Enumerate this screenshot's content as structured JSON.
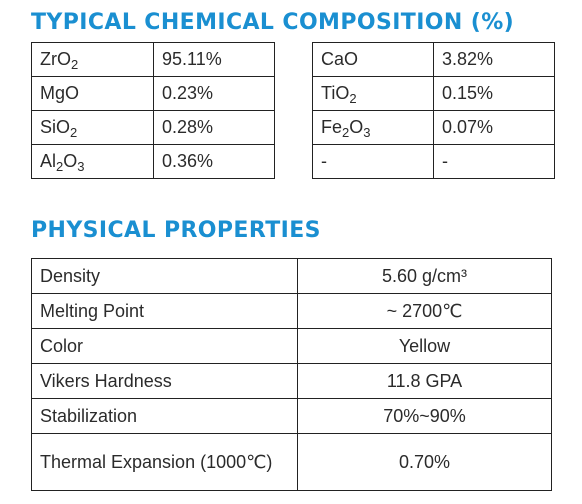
{
  "colors": {
    "heading": "#1a8fd1",
    "border": "#222222",
    "text": "#2b2b2b"
  },
  "chemical": {
    "title": "TYPICAL CHEMICAL COMPOSITION (%)",
    "left": [
      {
        "base": "ZrO",
        "sub": "2",
        "value": "95.11%"
      },
      {
        "base": "MgO",
        "sub": "",
        "value": "0.23%"
      },
      {
        "base": "SiO",
        "sub": "2",
        "value": "0.28%"
      },
      {
        "base": "Al",
        "sub": "2",
        "tail": "O",
        "sub2": "3",
        "value": "0.36%"
      }
    ],
    "right": [
      {
        "base": "CaO",
        "sub": "",
        "value": "3.82%"
      },
      {
        "base": "TiO",
        "sub": "2",
        "value": "0.15%"
      },
      {
        "base": "Fe",
        "sub": "2",
        "tail": "O",
        "sub2": "3",
        "value": "0.07%"
      },
      {
        "base": "-",
        "sub": "",
        "value": "-"
      }
    ]
  },
  "physical": {
    "title": "PHYSICAL PROPERTIES",
    "rows": [
      {
        "label": "Density",
        "value": "5.60 g/cm³"
      },
      {
        "label": "Melting Point",
        "value": "~ 2700℃"
      },
      {
        "label": "Color",
        "value": "Yellow"
      },
      {
        "label": "Vikers Hardness",
        "value": "11.8 GPA"
      },
      {
        "label": "Stabilization",
        "value": "70%~90%"
      },
      {
        "label": "Thermal Expansion (1000℃)",
        "value": "0.70%"
      }
    ]
  }
}
